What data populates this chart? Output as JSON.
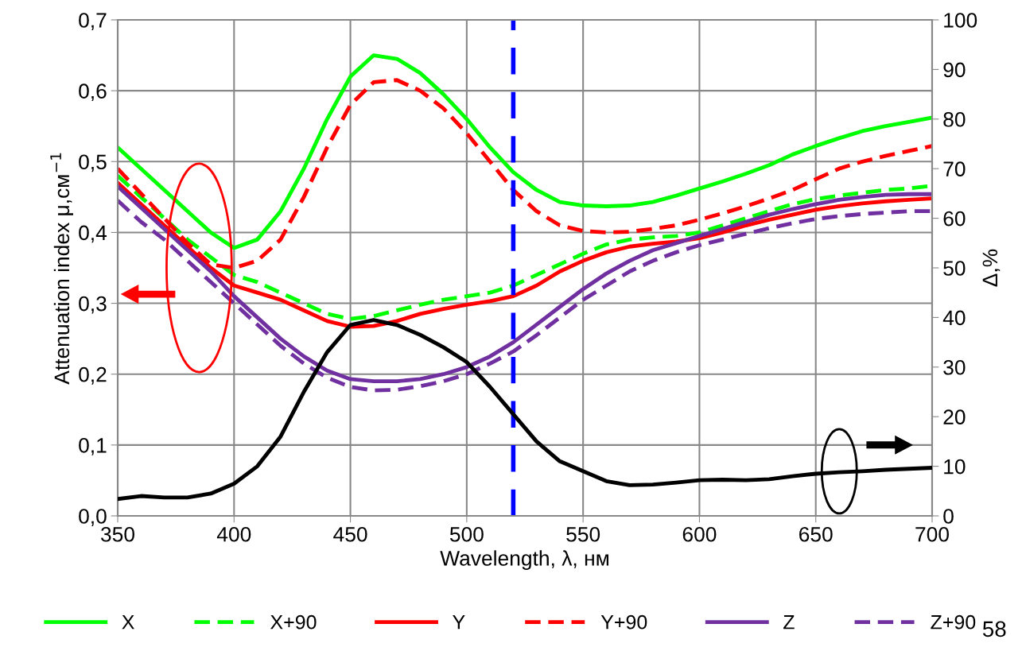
{
  "chart_data": {
    "type": "line",
    "xlabel": "Wavelength, λ, нм",
    "ylabel": "Attenuation index μ,см$^{−1}$",
    "y2label": "Δ,%",
    "x": [
      350,
      360,
      370,
      380,
      390,
      400,
      410,
      420,
      430,
      440,
      450,
      460,
      470,
      480,
      490,
      500,
      510,
      520,
      530,
      540,
      550,
      560,
      570,
      580,
      590,
      600,
      610,
      620,
      630,
      640,
      650,
      660,
      670,
      680,
      690,
      700
    ],
    "series": [
      {
        "name": "X",
        "color": "#00ff00",
        "line_style": "solid",
        "values": [
          0.52,
          0.49,
          0.46,
          0.43,
          0.4,
          0.378,
          0.39,
          0.43,
          0.49,
          0.56,
          0.62,
          0.65,
          0.645,
          0.625,
          0.595,
          0.56,
          0.52,
          0.485,
          0.46,
          0.443,
          0.438,
          0.437,
          0.438,
          0.443,
          0.452,
          0.462,
          0.472,
          0.483,
          0.495,
          0.51,
          0.522,
          0.533,
          0.543,
          0.55,
          0.556,
          0.562
        ]
      },
      {
        "name": "X+90",
        "color": "#00ff00",
        "line_style": "dashed",
        "values": [
          0.48,
          0.45,
          0.42,
          0.39,
          0.365,
          0.34,
          0.33,
          0.315,
          0.3,
          0.285,
          0.278,
          0.282,
          0.29,
          0.298,
          0.305,
          0.31,
          0.315,
          0.325,
          0.34,
          0.355,
          0.37,
          0.383,
          0.39,
          0.393,
          0.395,
          0.4,
          0.41,
          0.42,
          0.43,
          0.44,
          0.447,
          0.452,
          0.456,
          0.46,
          0.462,
          0.466
        ]
      },
      {
        "name": "Y",
        "color": "#ff0000",
        "line_style": "solid",
        "values": [
          0.47,
          0.44,
          0.41,
          0.38,
          0.35,
          0.325,
          0.315,
          0.305,
          0.29,
          0.275,
          0.267,
          0.268,
          0.275,
          0.285,
          0.292,
          0.298,
          0.303,
          0.31,
          0.325,
          0.345,
          0.36,
          0.372,
          0.38,
          0.384,
          0.387,
          0.392,
          0.4,
          0.41,
          0.418,
          0.425,
          0.432,
          0.437,
          0.441,
          0.444,
          0.446,
          0.448
        ]
      },
      {
        "name": "Y+90",
        "color": "#ff0000",
        "line_style": "dashed",
        "values": [
          0.49,
          0.455,
          0.42,
          0.385,
          0.355,
          0.35,
          0.36,
          0.39,
          0.45,
          0.52,
          0.58,
          0.612,
          0.615,
          0.6,
          0.575,
          0.54,
          0.5,
          0.46,
          0.43,
          0.41,
          0.402,
          0.4,
          0.401,
          0.405,
          0.41,
          0.418,
          0.427,
          0.437,
          0.448,
          0.46,
          0.475,
          0.49,
          0.5,
          0.508,
          0.515,
          0.522
        ]
      },
      {
        "name": "Z",
        "color": "#7030a0",
        "line_style": "solid",
        "values": [
          0.465,
          0.435,
          0.405,
          0.375,
          0.345,
          0.31,
          0.28,
          0.25,
          0.225,
          0.205,
          0.193,
          0.19,
          0.19,
          0.193,
          0.2,
          0.21,
          0.225,
          0.245,
          0.27,
          0.295,
          0.32,
          0.342,
          0.36,
          0.375,
          0.385,
          0.395,
          0.405,
          0.415,
          0.425,
          0.433,
          0.44,
          0.446,
          0.45,
          0.453,
          0.454,
          0.454
        ]
      },
      {
        "name": "Z+90",
        "color": "#7030a0",
        "line_style": "dashed",
        "values": [
          0.445,
          0.415,
          0.39,
          0.36,
          0.33,
          0.3,
          0.27,
          0.24,
          0.215,
          0.195,
          0.182,
          0.177,
          0.178,
          0.183,
          0.19,
          0.2,
          0.215,
          0.232,
          0.255,
          0.28,
          0.305,
          0.325,
          0.345,
          0.36,
          0.372,
          0.382,
          0.39,
          0.398,
          0.406,
          0.413,
          0.419,
          0.423,
          0.426,
          0.428,
          0.43,
          0.43
        ]
      },
      {
        "color": "#000000",
        "axis": "y2",
        "line_style": "solid",
        "values": [
          3.4,
          4,
          3.7,
          3.7,
          4.5,
          6.5,
          10,
          16,
          25,
          33,
          38.5,
          39.5,
          38.5,
          36.5,
          34,
          31,
          26,
          20.5,
          15,
          11,
          9,
          7,
          6.2,
          6.3,
          6.7,
          7.2,
          7.3,
          7.2,
          7.4,
          8,
          8.5,
          8.8,
          9,
          9.3,
          9.5,
          9.7
        ]
      }
    ],
    "xlim": [
      350,
      700
    ],
    "xticks": [
      350,
      400,
      450,
      500,
      550,
      600,
      650,
      700
    ],
    "ylim": [
      0,
      0.7
    ],
    "yticks": [
      {
        "value": 0,
        "label": "0,0"
      },
      {
        "value": 0.1,
        "label": "0,1"
      },
      {
        "value": 0.2,
        "label": "0,2"
      },
      {
        "value": 0.3,
        "label": "0,3"
      },
      {
        "value": 0.4,
        "label": "0,4"
      },
      {
        "value": 0.5,
        "label": "0,5"
      },
      {
        "value": 0.6,
        "label": "0,6"
      },
      {
        "value": 0.7,
        "label": "0,7"
      }
    ],
    "y2lim": [
      0,
      100
    ],
    "y2ticks": [
      0,
      10,
      20,
      30,
      40,
      50,
      60,
      70,
      80,
      90,
      100
    ],
    "ref_lines": [
      {
        "axis": "x",
        "value": 520,
        "color": "#0000ff",
        "line_style": "dashed"
      }
    ],
    "grid": true,
    "legend": "bottom",
    "marker": "none",
    "annotations": [
      "58"
    ]
  }
}
